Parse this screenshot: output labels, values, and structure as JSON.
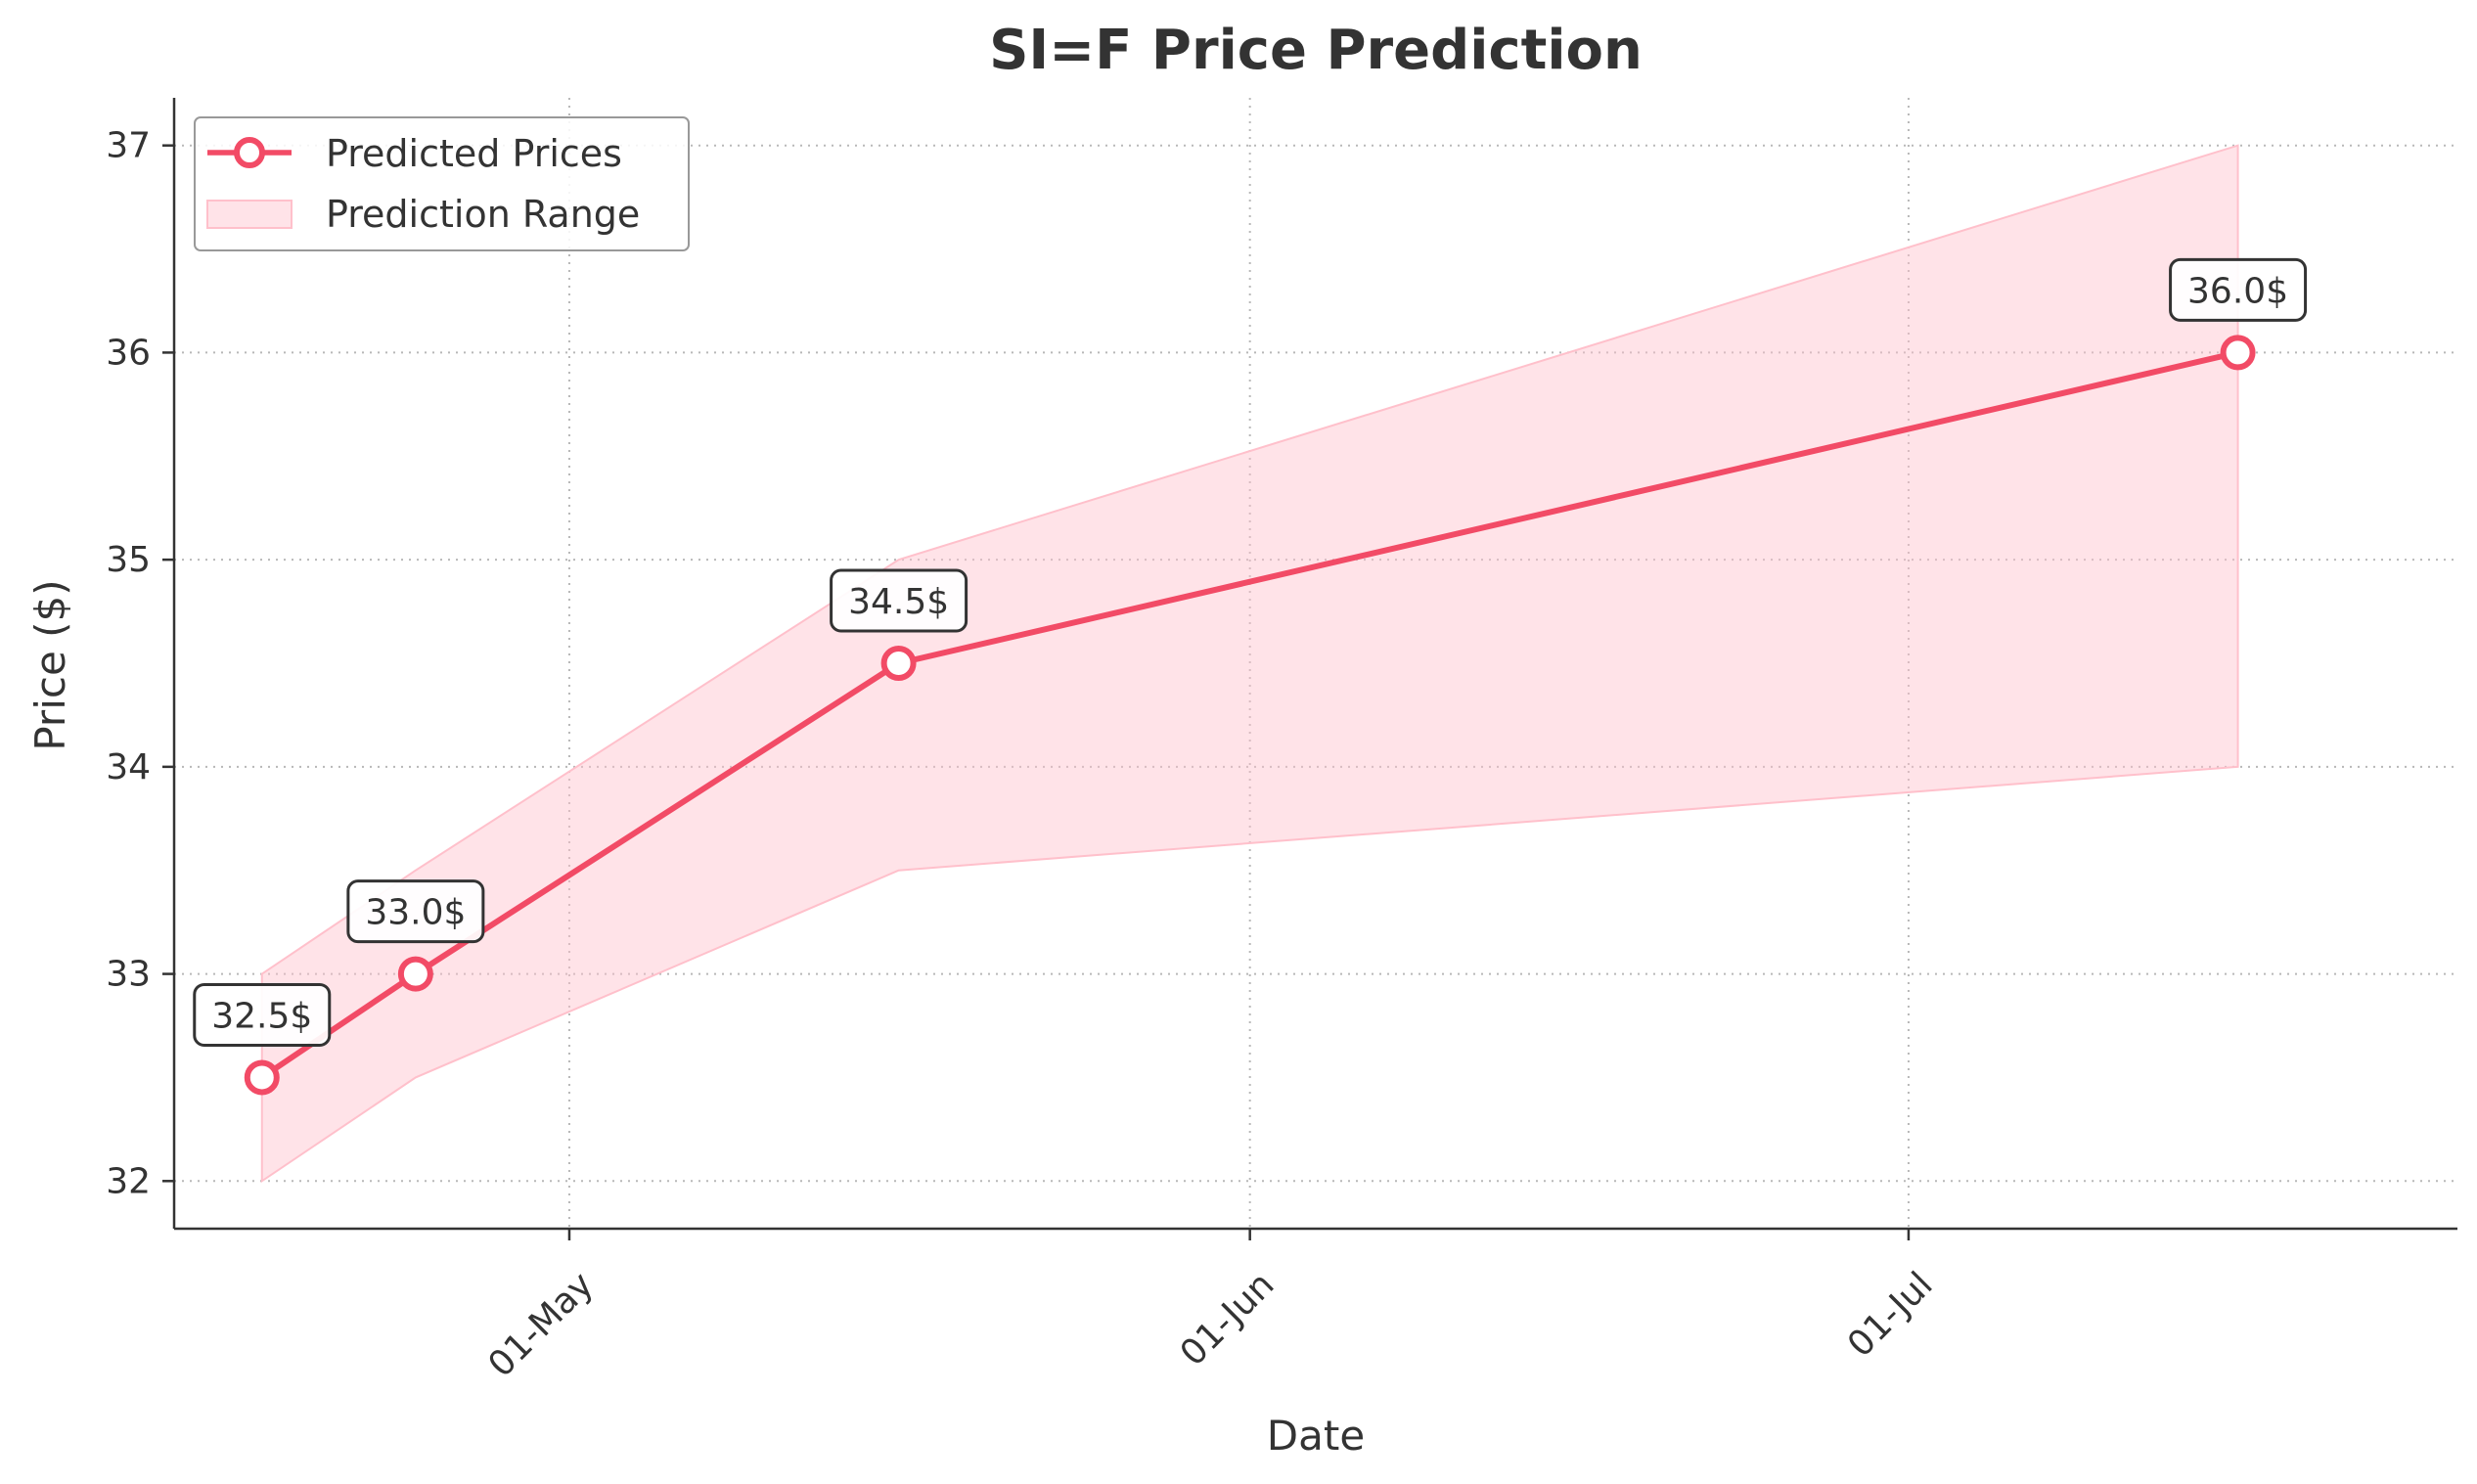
{
  "chart_data": {
    "type": "line",
    "title": "SI=F Price Prediction",
    "xlabel": "Date",
    "ylabel": "Price ($)",
    "x_tick_labels": [
      "01-May",
      "01-Jun",
      "01-Jul"
    ],
    "x_ticks": [
      "2025-05-01",
      "2025-06-01",
      "2025-07-01"
    ],
    "x_range": [
      "2025-04-13",
      "2025-07-26"
    ],
    "y_ticks": [
      32,
      33,
      34,
      35,
      36,
      37
    ],
    "ylim": [
      31.77,
      37.23
    ],
    "grid": true,
    "legend_position": "top-left",
    "series": [
      {
        "name": "Predicted Prices",
        "color": "#f24b66",
        "x": [
          "2025-04-17",
          "2025-04-24",
          "2025-05-16",
          "2025-07-16"
        ],
        "values": [
          32.5,
          33.0,
          34.5,
          36.0
        ],
        "labels": [
          "32.5$",
          "33.0$",
          "34.5$",
          "36.0$"
        ]
      }
    ],
    "range_band": {
      "name": "Prediction Range",
      "color": "#ffc0cb",
      "x": [
        "2025-04-17",
        "2025-04-24",
        "2025-05-16",
        "2025-07-16"
      ],
      "lower": [
        32.0,
        32.5,
        33.5,
        34.0
      ],
      "upper": [
        33.0,
        33.5,
        35.0,
        37.0
      ]
    }
  }
}
